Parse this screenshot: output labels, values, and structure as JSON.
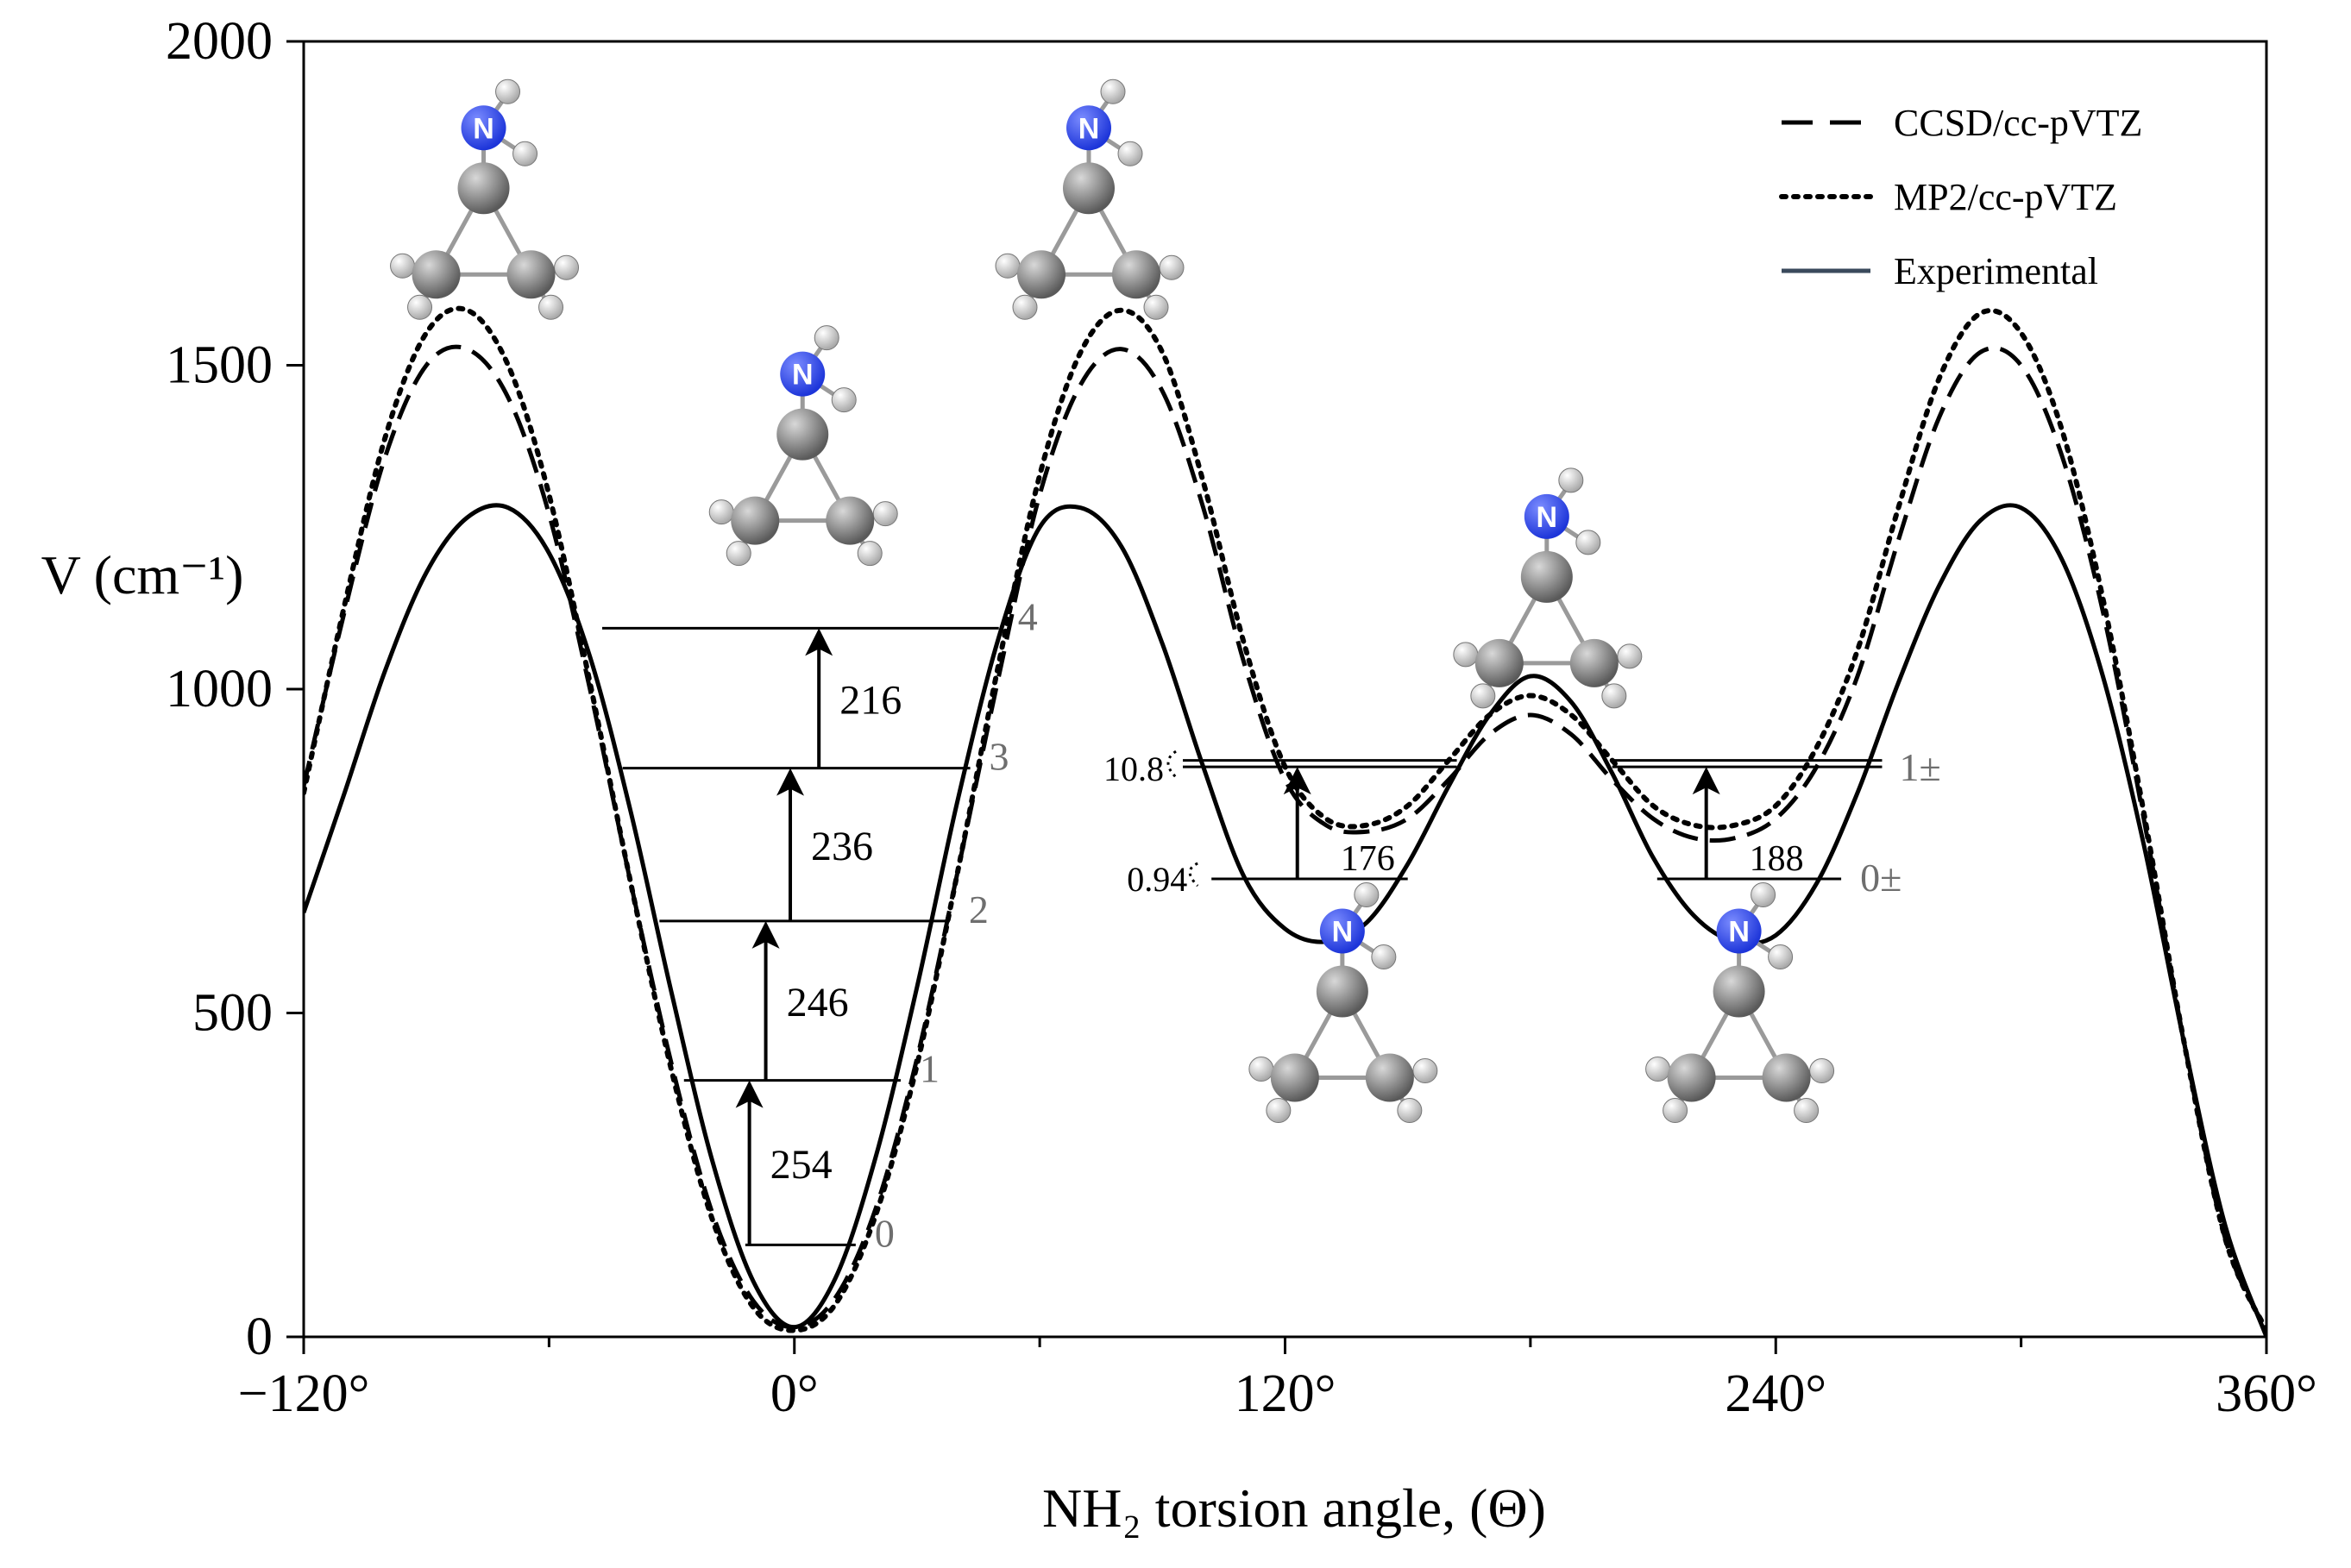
{
  "chart_data": {
    "type": "line",
    "xlabel": "NH₂ torsion angle, (Θ)",
    "ylabel": "V (cm⁻¹)",
    "xlim": [
      -120,
      360
    ],
    "ylim": [
      0,
      2000
    ],
    "x_ticks": [
      -120,
      0,
      120,
      240,
      360
    ],
    "x_tick_labels": [
      "−120°",
      "0°",
      "120°",
      "240°",
      "360°"
    ],
    "x_minor_ticks": [
      -60,
      60,
      180,
      300
    ],
    "y_ticks": [
      0,
      500,
      1000,
      1500,
      2000
    ],
    "y_tick_labels": [
      "0",
      "500",
      "1000",
      "1500",
      "2000"
    ],
    "legend_position": "top-right",
    "series": [
      {
        "name": "CCSD/cc-pVTZ",
        "style": "dashed",
        "points": [
          [
            -120,
            850
          ],
          [
            -110,
            1120
          ],
          [
            -100,
            1360
          ],
          [
            -90,
            1500
          ],
          [
            -80,
            1525
          ],
          [
            -70,
            1450
          ],
          [
            -60,
            1270
          ],
          [
            -50,
            1000
          ],
          [
            -40,
            700
          ],
          [
            -30,
            420
          ],
          [
            -20,
            190
          ],
          [
            -10,
            55
          ],
          [
            0,
            15
          ],
          [
            10,
            60
          ],
          [
            20,
            200
          ],
          [
            30,
            430
          ],
          [
            40,
            720
          ],
          [
            50,
            1020
          ],
          [
            60,
            1300
          ],
          [
            70,
            1470
          ],
          [
            80,
            1525
          ],
          [
            90,
            1460
          ],
          [
            100,
            1280
          ],
          [
            110,
            1040
          ],
          [
            120,
            860
          ],
          [
            130,
            790
          ],
          [
            140,
            780
          ],
          [
            150,
            800
          ],
          [
            160,
            860
          ],
          [
            170,
            930
          ],
          [
            180,
            960
          ],
          [
            190,
            930
          ],
          [
            200,
            860
          ],
          [
            210,
            800
          ],
          [
            220,
            770
          ],
          [
            230,
            770
          ],
          [
            240,
            800
          ],
          [
            250,
            880
          ],
          [
            260,
            1020
          ],
          [
            270,
            1230
          ],
          [
            280,
            1420
          ],
          [
            290,
            1520
          ],
          [
            300,
            1500
          ],
          [
            310,
            1360
          ],
          [
            320,
            1120
          ],
          [
            330,
            800
          ],
          [
            340,
            450
          ],
          [
            350,
            150
          ],
          [
            360,
            10
          ]
        ]
      },
      {
        "name": "MP2/cc-pVTZ",
        "style": "dotted",
        "points": [
          [
            -120,
            840
          ],
          [
            -110,
            1130
          ],
          [
            -100,
            1390
          ],
          [
            -90,
            1550
          ],
          [
            -80,
            1585
          ],
          [
            -70,
            1500
          ],
          [
            -60,
            1300
          ],
          [
            -50,
            1010
          ],
          [
            -40,
            700
          ],
          [
            -30,
            410
          ],
          [
            -20,
            180
          ],
          [
            -10,
            45
          ],
          [
            0,
            10
          ],
          [
            10,
            50
          ],
          [
            20,
            190
          ],
          [
            30,
            420
          ],
          [
            40,
            720
          ],
          [
            50,
            1040
          ],
          [
            60,
            1330
          ],
          [
            70,
            1520
          ],
          [
            80,
            1585
          ],
          [
            90,
            1520
          ],
          [
            100,
            1320
          ],
          [
            110,
            1070
          ],
          [
            120,
            880
          ],
          [
            130,
            800
          ],
          [
            140,
            790
          ],
          [
            150,
            820
          ],
          [
            160,
            890
          ],
          [
            170,
            960
          ],
          [
            180,
            990
          ],
          [
            190,
            960
          ],
          [
            200,
            890
          ],
          [
            210,
            820
          ],
          [
            220,
            790
          ],
          [
            230,
            790
          ],
          [
            240,
            820
          ],
          [
            250,
            910
          ],
          [
            260,
            1060
          ],
          [
            270,
            1280
          ],
          [
            280,
            1480
          ],
          [
            290,
            1580
          ],
          [
            300,
            1550
          ],
          [
            310,
            1400
          ],
          [
            320,
            1140
          ],
          [
            330,
            810
          ],
          [
            340,
            450
          ],
          [
            350,
            150
          ],
          [
            360,
            10
          ]
        ]
      },
      {
        "name": "Experimental",
        "style": "solid",
        "points": [
          [
            -120,
            655
          ],
          [
            -110,
            840
          ],
          [
            -100,
            1030
          ],
          [
            -90,
            1180
          ],
          [
            -80,
            1265
          ],
          [
            -70,
            1280
          ],
          [
            -60,
            1210
          ],
          [
            -50,
            1050
          ],
          [
            -40,
            810
          ],
          [
            -30,
            530
          ],
          [
            -20,
            270
          ],
          [
            -10,
            85
          ],
          [
            0,
            15
          ],
          [
            10,
            90
          ],
          [
            20,
            280
          ],
          [
            30,
            540
          ],
          [
            40,
            830
          ],
          [
            50,
            1080
          ],
          [
            60,
            1250
          ],
          [
            70,
            1280
          ],
          [
            80,
            1220
          ],
          [
            90,
            1070
          ],
          [
            100,
            880
          ],
          [
            110,
            710
          ],
          [
            120,
            630
          ],
          [
            130,
            610
          ],
          [
            140,
            640
          ],
          [
            150,
            730
          ],
          [
            160,
            850
          ],
          [
            170,
            960
          ],
          [
            180,
            1020
          ],
          [
            190,
            980
          ],
          [
            200,
            870
          ],
          [
            210,
            740
          ],
          [
            220,
            650
          ],
          [
            230,
            610
          ],
          [
            240,
            620
          ],
          [
            250,
            700
          ],
          [
            260,
            840
          ],
          [
            270,
            1010
          ],
          [
            280,
            1160
          ],
          [
            290,
            1260
          ],
          [
            300,
            1280
          ],
          [
            310,
            1200
          ],
          [
            320,
            1020
          ],
          [
            330,
            760
          ],
          [
            340,
            450
          ],
          [
            350,
            170
          ],
          [
            360,
            0
          ]
        ]
      }
    ],
    "energy_levels": [
      {
        "label": "0",
        "v": 142,
        "x_from": -12,
        "x_to": 15
      },
      {
        "label": "1",
        "v": 396,
        "x_from": -27,
        "x_to": 26
      },
      {
        "label": "2",
        "v": 642,
        "x_from": -33,
        "x_to": 38
      },
      {
        "label": "3",
        "v": 878,
        "x_from": -42,
        "x_to": 43
      },
      {
        "label": "4",
        "v": 1094,
        "x_from": -47,
        "x_to": 50
      }
    ],
    "transitions": [
      {
        "label": "254",
        "x": -11,
        "from": 142,
        "to": 396
      },
      {
        "label": "246",
        "x": -7,
        "from": 396,
        "to": 642
      },
      {
        "label": "236",
        "x": -1,
        "from": 642,
        "to": 878
      },
      {
        "label": "216",
        "x": 6,
        "from": 878,
        "to": 1094
      }
    ],
    "side_wells": [
      {
        "level_low": 707,
        "level_high": 880,
        "level_high_2": 890,
        "x_from_low": 102,
        "x_to_low": 150,
        "x_from_high": 95,
        "x_to_high": 162,
        "arrow_x": 123,
        "transition_label": "176",
        "splitting_low_label": "0.94",
        "splitting_high_label": "10.8"
      },
      {
        "level_low": 707,
        "level_high": 880,
        "level_high_2": 890,
        "x_from_low": 211,
        "x_to_low": 256,
        "x_from_high": 200,
        "x_to_high": 266,
        "arrow_x": 223,
        "transition_label": "188",
        "level_low_label": "0±",
        "level_high_label": "1±"
      }
    ],
    "structures": [
      {
        "id": "barrier-left",
        "x": -76,
        "v": 1720,
        "n_side": "top"
      },
      {
        "id": "barrier-middle",
        "x": 72,
        "v": 1720,
        "n_side": "top"
      },
      {
        "id": "well-0",
        "x": 2,
        "v": 1340,
        "n_side": "top"
      },
      {
        "id": "well-180",
        "x": 184,
        "v": 1120,
        "n_side": "top"
      },
      {
        "id": "well-120",
        "x": 134,
        "v": 480,
        "n_side": "top"
      },
      {
        "id": "well-240",
        "x": 231,
        "v": 480,
        "n_side": "top"
      }
    ],
    "colors": {
      "nitrogen": "#1d35d9",
      "carbon": "#8a8a8a",
      "hydrogen": "#e8e8e8",
      "bond": "#9a9a9a",
      "legend_experimental": "#3a4a5c"
    }
  }
}
